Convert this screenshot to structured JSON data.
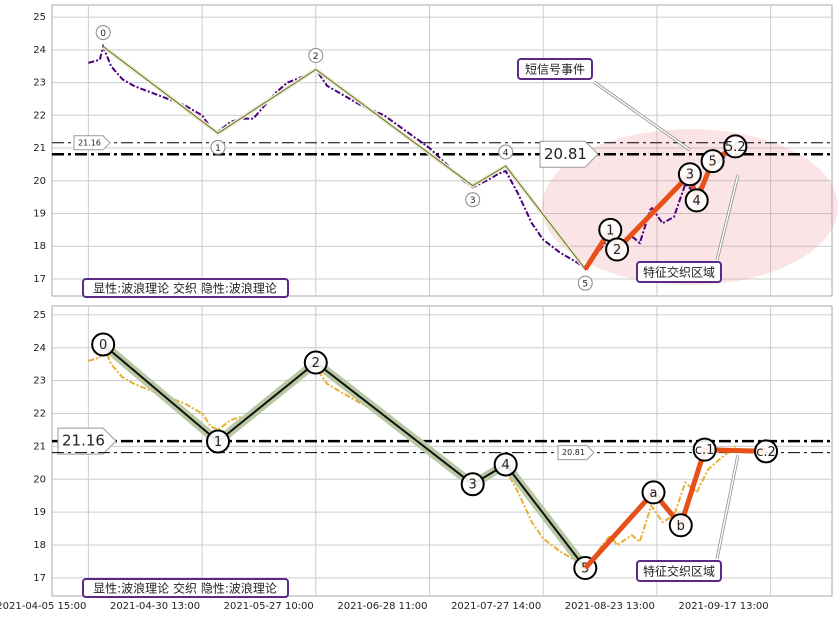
{
  "chart_data": [
    {
      "type": "line",
      "xlim": [
        -32,
        654
      ],
      "xticks": [
        0,
        100,
        200,
        300,
        400,
        500,
        600
      ],
      "ylim": [
        16.48,
        25.37
      ],
      "yticks": [
        17,
        18,
        19,
        20,
        21,
        22,
        23,
        24,
        25
      ],
      "grid": true,
      "series": [
        {
          "name": "price",
          "color": "#4b0082",
          "x": [
            0,
            10,
            13,
            20,
            30,
            40,
            55,
            70,
            85,
            100,
            108,
            114,
            125,
            135,
            145,
            155,
            165,
            175,
            190,
            200,
            210,
            225,
            240,
            260,
            280,
            300,
            318,
            330,
            338,
            350,
            360,
            367,
            378,
            390,
            400,
            415,
            430,
            437,
            450,
            459,
            465,
            478,
            485,
            495,
            505,
            515,
            525,
            535,
            545,
            555,
            569
          ],
          "values": [
            23.6,
            23.7,
            24.1,
            23.5,
            23.1,
            22.9,
            22.7,
            22.5,
            22.3,
            22.0,
            21.6,
            21.5,
            21.8,
            21.9,
            21.9,
            22.3,
            22.7,
            23.0,
            23.2,
            23.4,
            22.9,
            22.6,
            22.3,
            22.0,
            21.5,
            21.0,
            20.4,
            20.0,
            19.8,
            20.0,
            20.2,
            20.3,
            19.6,
            18.7,
            18.2,
            17.8,
            17.5,
            17.3,
            17.9,
            18.3,
            18.0,
            18.3,
            18.1,
            19.2,
            18.7,
            18.9,
            19.9,
            19.6,
            20.3,
            20.6,
            21.0
          ]
        },
        {
          "name": "wave",
          "color": "#6b6b2a",
          "x": [
            13,
            114,
            200,
            338,
            367,
            437
          ],
          "values": [
            24.1,
            21.45,
            23.4,
            19.85,
            20.45,
            17.3
          ],
          "point_labels": [
            "0",
            "1",
            "2",
            "3",
            "4",
            "5"
          ]
        },
        {
          "name": "subwave",
          "color": "#e8501a",
          "x": [
            437,
            459,
            465,
            529,
            535,
            549,
            569
          ],
          "values": [
            17.3,
            18.5,
            17.9,
            20.2,
            19.4,
            20.6,
            21.05
          ],
          "point_labels": [
            null,
            "1",
            "2",
            "3",
            "4",
            "5",
            "5.2"
          ]
        }
      ],
      "hlines": [
        {
          "value": 21.16,
          "size": "small"
        },
        {
          "value": 20.81,
          "size": "large"
        }
      ],
      "annotations": [
        "短信号事件",
        "特征交织区域"
      ],
      "legend_text": "显性:波浪理论 交织 隐性:波浪理论"
    },
    {
      "type": "line",
      "xlim": [
        -32,
        654
      ],
      "xticks": [
        {
          "value": 0,
          "label": "2021-04-05 15:00"
        },
        {
          "value": 100,
          "label": "2021-04-30 13:00"
        },
        {
          "value": 200,
          "label": "2021-05-27 10:00"
        },
        {
          "value": 300,
          "label": "2021-06-28 11:00"
        },
        {
          "value": 400,
          "label": "2021-07-27 14:00"
        },
        {
          "value": 500,
          "label": "2021-08-23 13:00"
        },
        {
          "value": 600,
          "label": "2021-09-17 13:00"
        }
      ],
      "ylim": [
        16.45,
        25.27
      ],
      "yticks": [
        17,
        18,
        19,
        20,
        21,
        22,
        23,
        24,
        25
      ],
      "grid": true,
      "series": [
        {
          "name": "price",
          "color": "#e8b030",
          "x": [
            0,
            10,
            13,
            20,
            30,
            40,
            55,
            70,
            85,
            100,
            108,
            114,
            125,
            135,
            145,
            155,
            165,
            175,
            190,
            200,
            210,
            225,
            240,
            260,
            280,
            300,
            318,
            330,
            338,
            350,
            360,
            367,
            378,
            390,
            400,
            415,
            430,
            437,
            450,
            459,
            465,
            478,
            485,
            495,
            505,
            515,
            525,
            535,
            545,
            555,
            569
          ],
          "values": [
            23.6,
            23.7,
            24.1,
            23.5,
            23.1,
            22.9,
            22.7,
            22.5,
            22.3,
            22.0,
            21.6,
            21.5,
            21.8,
            21.9,
            21.9,
            22.3,
            22.7,
            23.0,
            23.2,
            23.4,
            22.9,
            22.6,
            22.3,
            22.0,
            21.5,
            21.0,
            20.4,
            20.0,
            19.8,
            20.0,
            20.2,
            20.3,
            19.6,
            18.7,
            18.2,
            17.8,
            17.5,
            17.3,
            17.9,
            18.3,
            18.0,
            18.3,
            18.1,
            19.2,
            18.7,
            18.9,
            19.9,
            19.6,
            20.3,
            20.6,
            21.0
          ]
        },
        {
          "name": "wave",
          "color": "#111111",
          "x": [
            13,
            114,
            200,
            338,
            367,
            437
          ],
          "values": [
            24.1,
            21.15,
            23.55,
            19.85,
            20.45,
            17.3
          ],
          "point_labels": [
            "0",
            "1",
            "2",
            "3",
            "4",
            "5"
          ]
        },
        {
          "name": "subwave",
          "color": "#e8501a",
          "x": [
            437,
            497,
            521,
            542,
            596
          ],
          "values": [
            17.3,
            19.6,
            18.6,
            20.9,
            20.85
          ],
          "point_labels": [
            null,
            "a",
            "b",
            "c.1",
            "c.2"
          ]
        }
      ],
      "hlines": [
        {
          "value": 21.16,
          "size": "large"
        },
        {
          "value": 20.81,
          "size": "small"
        }
      ],
      "annotations": [
        "特征交织区域"
      ],
      "legend_text": "显性:波浪理论 交织 隐性:波浪理论"
    }
  ]
}
